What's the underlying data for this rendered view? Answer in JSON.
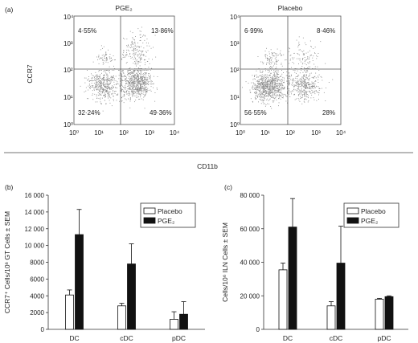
{
  "panel_labels": {
    "a": "(a)",
    "b": "(b)",
    "c": "(c)"
  },
  "flow": {
    "xlabel": "CD11b",
    "ylabel": "CCR7",
    "decade_ticks": [
      "10⁰",
      "10¹",
      "10²",
      "10³",
      "10⁴"
    ],
    "plots": [
      {
        "title": "PGE₂",
        "quadrants": {
          "ul": "4·55%",
          "ur": "13·86%",
          "ll": "32·24%",
          "lr": "49·36%"
        }
      },
      {
        "title": "Placebo",
        "quadrants": {
          "ul": "6·99%",
          "ur": "8·46%",
          "ll": "56·55%",
          "lr": "28%"
        }
      }
    ]
  },
  "chart_data": [
    {
      "type": "scatter",
      "title": "PGE₂",
      "xlabel": "CD11b",
      "ylabel": "CCR7",
      "xscale": "log",
      "yscale": "log",
      "xlim": [
        1,
        10000
      ],
      "ylim": [
        1,
        10000
      ],
      "quadrant_percentages": {
        "upper_left": 4.55,
        "upper_right": 13.86,
        "lower_left": 32.24,
        "lower_right": 49.36
      }
    },
    {
      "type": "scatter",
      "title": "Placebo",
      "xlabel": "CD11b",
      "ylabel": "CCR7",
      "xscale": "log",
      "yscale": "log",
      "xlim": [
        1,
        10000
      ],
      "ylim": [
        1,
        10000
      ],
      "quadrant_percentages": {
        "upper_left": 6.99,
        "upper_right": 8.46,
        "lower_left": 56.55,
        "lower_right": 28
      }
    },
    {
      "type": "bar",
      "categories": [
        "DC",
        "cDC",
        "pDC"
      ],
      "ylabel": "CCR7⁺ Cells/10⁶ GT Cells ± SEM",
      "ylim": [
        0,
        16000
      ],
      "yticks": [
        "0",
        "2000",
        "4000",
        "6000",
        "8000",
        "10 000",
        "12 000",
        "14 000",
        "16 000"
      ],
      "tick_values": [
        0,
        2000,
        4000,
        6000,
        8000,
        10000,
        12000,
        14000,
        16000
      ],
      "legend_position": "top-right",
      "series": [
        {
          "name": "Placebo",
          "color": "#ffffff",
          "values": [
            4100,
            2800,
            1200
          ],
          "errors": [
            600,
            300,
            900
          ]
        },
        {
          "name": "PGE₂",
          "color": "#111111",
          "values": [
            11300,
            7800,
            1800
          ],
          "errors": [
            3000,
            2400,
            1500
          ]
        }
      ]
    },
    {
      "type": "bar",
      "categories": [
        "DC",
        "cDC",
        "pDC"
      ],
      "ylabel": "Cells/10⁶ ILN Cells ± SEM",
      "ylim": [
        0,
        80000
      ],
      "yticks": [
        "0",
        "20 000",
        "40 000",
        "60 000",
        "80 000"
      ],
      "tick_values": [
        0,
        20000,
        40000,
        60000,
        80000
      ],
      "legend_position": "top-right",
      "series": [
        {
          "name": "Placebo",
          "color": "#ffffff",
          "values": [
            35500,
            14000,
            18000
          ],
          "errors": [
            4000,
            2500,
            500
          ]
        },
        {
          "name": "PGE₂",
          "color": "#111111",
          "values": [
            61000,
            39500,
            19500
          ],
          "errors": [
            17000,
            22000,
            500
          ]
        }
      ]
    }
  ]
}
